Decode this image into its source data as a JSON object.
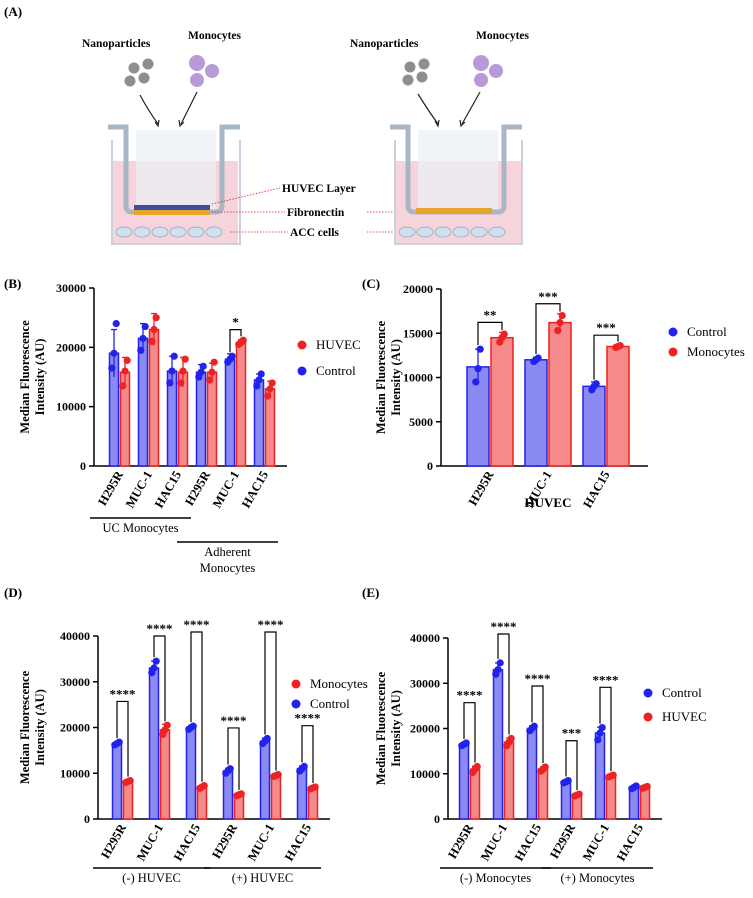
{
  "colors": {
    "blue": "#2222ee",
    "blue_fill": "#8a8af2",
    "red": "#ee2222",
    "red_fill": "#f48a8a",
    "axis": "#000000",
    "gray_particle": "#8e8e8e",
    "purple_cell": "#b89ad8",
    "pink_medium": "#f7d4dc",
    "orange_fibronectin": "#e8a52a"
  },
  "panel_a": {
    "label": "(A)",
    "left": {
      "nanoparticles": "Nanoparticles",
      "monocytes": "Monocytes"
    },
    "right": {
      "nanoparticles": "Nanoparticles",
      "monocytes": "Monocytes"
    },
    "annotations": {
      "huvec_layer": "HUVEC Layer",
      "fibronectin": "Fibronectin",
      "acc_cells": "ACC cells"
    }
  },
  "chart_data": [
    {
      "panel": "(B)",
      "type": "bar",
      "ylabel": "Median Fluorescence Intensity (AU)",
      "ylim": [
        0,
        30000
      ],
      "yticks": [
        0,
        10000,
        20000,
        30000
      ],
      "categories": [
        "H295R",
        "MUC-1",
        "HAC15",
        "H295R",
        "MUC-1",
        "HAC15"
      ],
      "groups": [
        {
          "label": "UC Monocytes",
          "span": [
            0,
            2
          ]
        },
        {
          "label": "Adherent Monocytes",
          "span": [
            3,
            5
          ]
        }
      ],
      "series": [
        {
          "name": "Control",
          "color": "blue",
          "values": [
            19000,
            21500,
            16000,
            15800,
            18000,
            14500
          ],
          "err": [
            4000,
            2500,
            2500,
            1300,
            900,
            1000
          ],
          "points": [
            [
              16500,
              19000,
              24000
            ],
            [
              19500,
              21500,
              23500
            ],
            [
              14000,
              16000,
              18500
            ],
            [
              15000,
              15800,
              16800
            ],
            [
              17500,
              18000,
              18500
            ],
            [
              13500,
              14500,
              15500
            ]
          ]
        },
        {
          "name": "HUVEC",
          "color": "red",
          "values": [
            15800,
            23000,
            15800,
            15800,
            20800,
            13000
          ],
          "err": [
            2500,
            2700,
            2500,
            1500,
            500,
            1300
          ],
          "points": [
            [
              13500,
              16000,
              17800
            ],
            [
              21000,
              23000,
              25000
            ],
            [
              14000,
              16000,
              18000
            ],
            [
              14500,
              15800,
              17500
            ],
            [
              20500,
              20800,
              21200
            ],
            [
              11800,
              13000,
              14000
            ]
          ]
        }
      ],
      "legend": [
        "HUVEC",
        "Control"
      ],
      "annotations": [
        {
          "text": "*",
          "between": [
            4,
            4
          ]
        }
      ]
    },
    {
      "panel": "(C)",
      "type": "bar",
      "ylabel": "Median Fluorescence Intensity (AU)",
      "xlabel": "HUVEC",
      "ylim": [
        0,
        20000
      ],
      "yticks": [
        0,
        5000,
        10000,
        15000,
        20000
      ],
      "categories": [
        "H295R",
        "MUC-1",
        "HAC15"
      ],
      "series": [
        {
          "name": "Control",
          "color": "blue",
          "values": [
            11200,
            12000,
            9000
          ],
          "err": [
            2000,
            300,
            500
          ],
          "points": [
            [
              9500,
              11000,
              13200
            ],
            [
              11800,
              12000,
              12200
            ],
            [
              8600,
              9000,
              9300
            ]
          ]
        },
        {
          "name": "Monocytes",
          "color": "red",
          "values": [
            14500,
            16200,
            13500
          ],
          "err": [
            600,
            1000,
            150
          ],
          "points": [
            [
              14000,
              14500,
              14900
            ],
            [
              15300,
              16200,
              17000
            ],
            [
              13400,
              13500,
              13600
            ]
          ]
        }
      ],
      "legend": [
        "Control",
        "Monocytes"
      ],
      "annotations": [
        {
          "text": "**",
          "index": 0
        },
        {
          "text": "***",
          "index": 1
        },
        {
          "text": "***",
          "index": 2
        }
      ]
    },
    {
      "panel": "(D)",
      "type": "bar",
      "ylabel": "Median Fluorescence Intensity (AU)",
      "ylim": [
        0,
        40000
      ],
      "yticks": [
        0,
        10000,
        20000,
        30000,
        40000
      ],
      "categories": [
        "H295R",
        "MUC-1",
        "HAC15",
        "H295R",
        "MUC-1",
        "HAC15"
      ],
      "groups": [
        {
          "label": "(-) HUVEC",
          "span": [
            0,
            2
          ]
        },
        {
          "label": "(+) HUVEC",
          "span": [
            3,
            5
          ]
        }
      ],
      "series": [
        {
          "name": "Control",
          "color": "blue",
          "values": [
            16500,
            33000,
            20000,
            10500,
            17000,
            11000
          ],
          "err": [
            400,
            1500,
            400,
            600,
            700,
            600
          ],
          "points": [
            [
              16200,
              16500,
              16800
            ],
            [
              32000,
              33000,
              34500
            ],
            [
              19600,
              20000,
              20300
            ],
            [
              10000,
              10500,
              11000
            ],
            [
              16500,
              17000,
              17600
            ],
            [
              10500,
              11000,
              11500
            ]
          ]
        },
        {
          "name": "Monocytes",
          "color": "red",
          "values": [
            8200,
            19500,
            7000,
            5300,
            9500,
            6800
          ],
          "err": [
            300,
            1200,
            400,
            300,
            200,
            300
          ],
          "points": [
            [
              8000,
              8200,
              8400
            ],
            [
              18500,
              19500,
              20500
            ],
            [
              6700,
              7000,
              7300
            ],
            [
              5100,
              5300,
              5500
            ],
            [
              9300,
              9500,
              9700
            ],
            [
              6600,
              6800,
              7000
            ]
          ]
        }
      ],
      "legend": [
        "Monocytes",
        "Control"
      ],
      "annotations": [
        {
          "text": "****",
          "index": 0
        },
        {
          "text": "****",
          "index": 1
        },
        {
          "text": "****",
          "index": 2
        },
        {
          "text": "****",
          "index": 3
        },
        {
          "text": "****",
          "index": 4
        },
        {
          "text": "****",
          "index": 5
        }
      ]
    },
    {
      "panel": "(E)",
      "type": "bar",
      "ylabel": "Median Fluorescence Intensity (AU)",
      "ylim": [
        0,
        40000
      ],
      "yticks": [
        0,
        10000,
        20000,
        30000,
        40000
      ],
      "categories": [
        "H295R",
        "MUC-1",
        "HAC15",
        "H295R",
        "MUC-1",
        "HAC15"
      ],
      "groups": [
        {
          "label": "(-) Monocytes",
          "span": [
            0,
            2
          ]
        },
        {
          "label": "(+) Monocytes",
          "span": [
            3,
            5
          ]
        }
      ],
      "series": [
        {
          "name": "Control",
          "color": "blue",
          "values": [
            16500,
            33000,
            20000,
            8200,
            19000,
            7000
          ],
          "err": [
            400,
            1500,
            600,
            300,
            1300,
            300
          ],
          "points": [
            [
              16200,
              16500,
              16800
            ],
            [
              32000,
              33000,
              34500
            ],
            [
              19500,
              20000,
              20500
            ],
            [
              8000,
              8200,
              8500
            ],
            [
              17500,
              19000,
              20200
            ],
            [
              6700,
              7000,
              7300
            ]
          ]
        },
        {
          "name": "HUVEC",
          "color": "red",
          "values": [
            11000,
            17000,
            11000,
            5300,
            9500,
            7000
          ],
          "err": [
            700,
            900,
            500,
            200,
            200,
            300
          ],
          "points": [
            [
              10300,
              11000,
              11600
            ],
            [
              16200,
              17000,
              17800
            ],
            [
              10600,
              11000,
              11500
            ],
            [
              5100,
              5300,
              5500
            ],
            [
              9300,
              9500,
              9700
            ],
            [
              6800,
              7000,
              7200
            ]
          ]
        }
      ],
      "legend": [
        "Control",
        "HUVEC"
      ],
      "annotations": [
        {
          "text": "****",
          "index": 0
        },
        {
          "text": "****",
          "index": 1
        },
        {
          "text": "****",
          "index": 2
        },
        {
          "text": "***",
          "index": 3
        },
        {
          "text": "****",
          "index": 4
        }
      ]
    }
  ]
}
